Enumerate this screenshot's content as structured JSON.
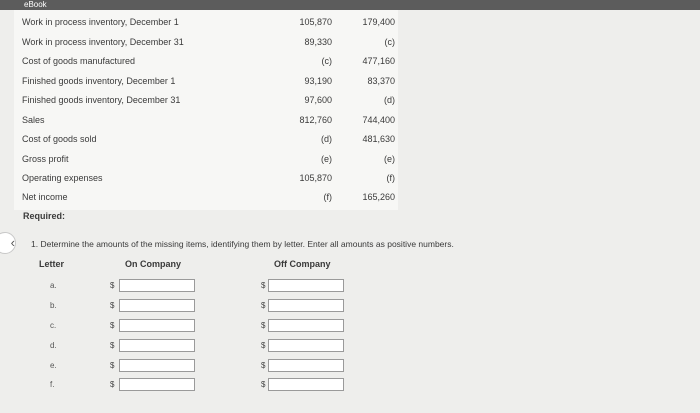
{
  "ebook_tab": "eBook",
  "data_rows": [
    {
      "label": "Work in process inventory, December 1",
      "v1": "105,870",
      "v2": "179,400"
    },
    {
      "label": "Work in process inventory, December 31",
      "v1": "89,330",
      "v2": "(c)"
    },
    {
      "label": "Cost of goods manufactured",
      "v1": "(c)",
      "v2": "477,160"
    },
    {
      "label": "Finished goods inventory, December 1",
      "v1": "93,190",
      "v2": "83,370"
    },
    {
      "label": "Finished goods inventory, December 31",
      "v1": "97,600",
      "v2": "(d)"
    },
    {
      "label": "Sales",
      "v1": "812,760",
      "v2": "744,400"
    },
    {
      "label": "Cost of goods sold",
      "v1": "(d)",
      "v2": "481,630"
    },
    {
      "label": "Gross profit",
      "v1": "(e)",
      "v2": "(e)"
    },
    {
      "label": "Operating expenses",
      "v1": "105,870",
      "v2": "(f)"
    },
    {
      "label": "Net income",
      "v1": "(f)",
      "v2": "165,260"
    }
  ],
  "required_label": "Required:",
  "instruction": "1. Determine the amounts of the missing items, identifying them by letter. Enter all amounts as positive numbers.",
  "headers": {
    "letter": "Letter",
    "on_company": "On Company",
    "off_company": "Off Company"
  },
  "answer_rows": [
    {
      "letter": "a.",
      "on_value": "",
      "off_value": ""
    },
    {
      "letter": "b.",
      "on_value": "",
      "off_value": ""
    },
    {
      "letter": "c.",
      "on_value": "",
      "off_value": ""
    },
    {
      "letter": "d.",
      "on_value": "",
      "off_value": ""
    },
    {
      "letter": "e.",
      "on_value": "",
      "off_value": ""
    },
    {
      "letter": "f.",
      "on_value": "",
      "off_value": ""
    }
  ],
  "currency_symbol": "$",
  "icons": {
    "back": "chevron-left-icon"
  }
}
